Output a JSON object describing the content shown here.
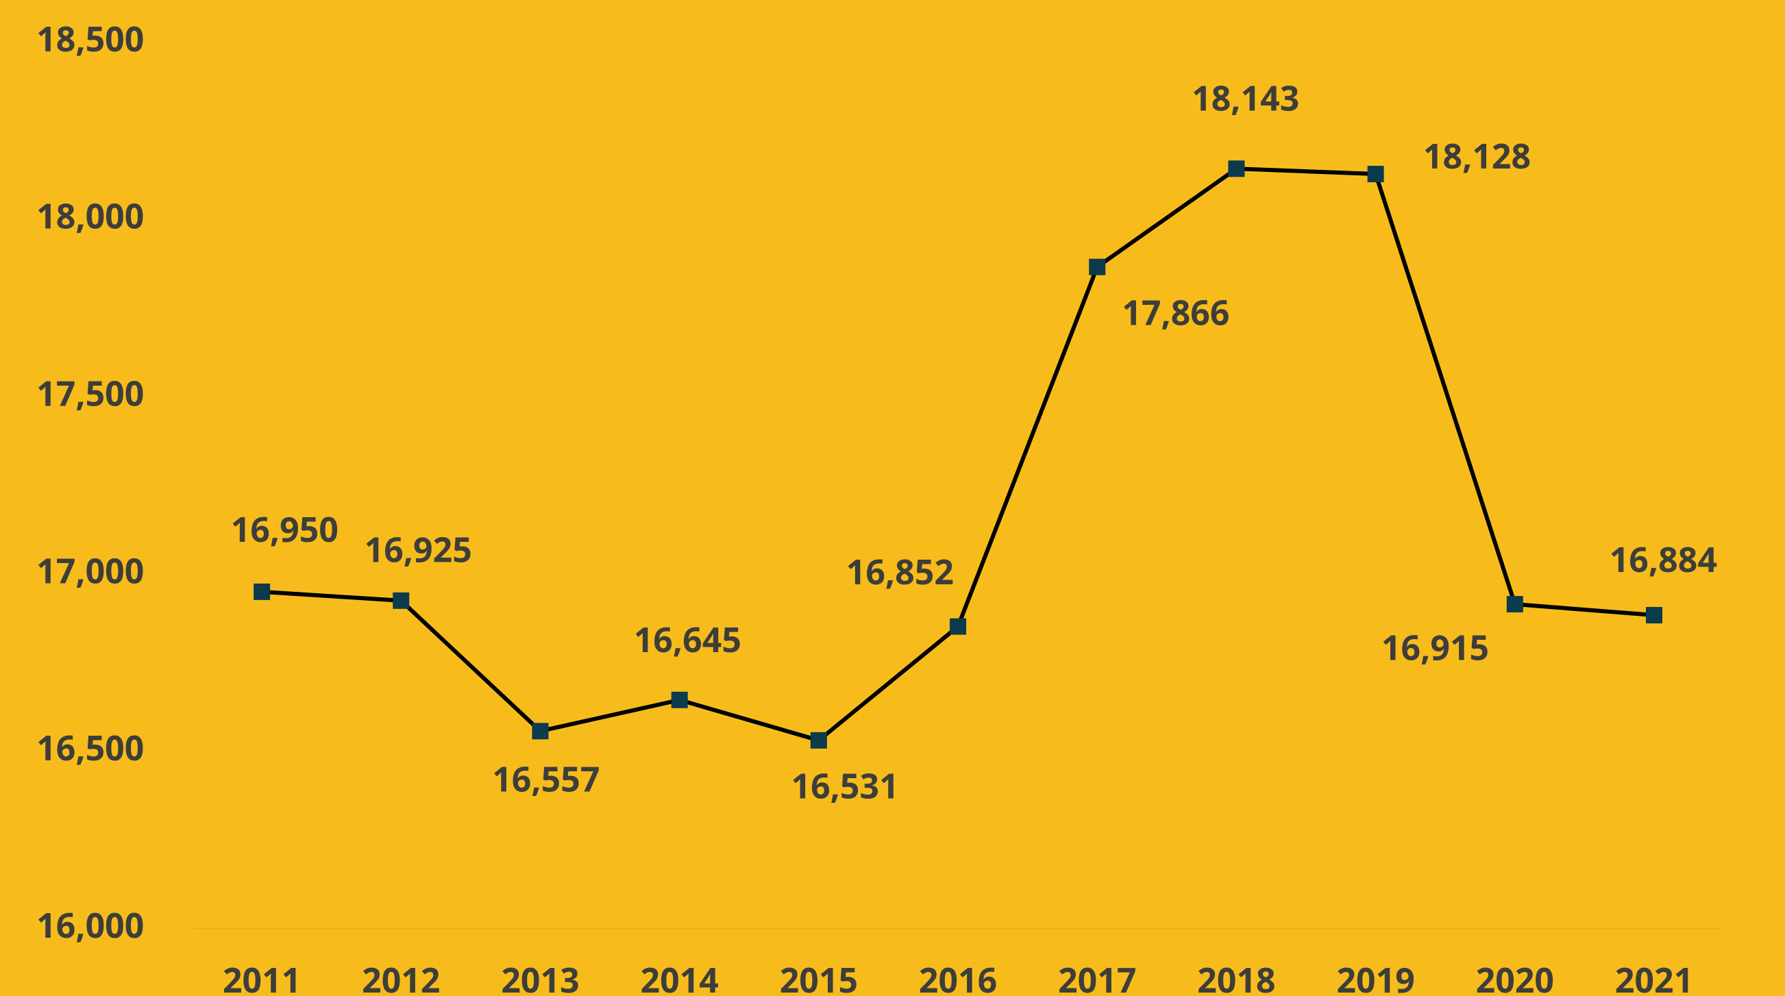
{
  "chart_data": {
    "type": "line",
    "categories": [
      "2011",
      "2012",
      "2013",
      "2014",
      "2015",
      "2016",
      "2017",
      "2018",
      "2019",
      "2020",
      "2021"
    ],
    "series": [
      {
        "color": "#000000",
        "marker_color": "#0b3b4c",
        "values": [
          16950,
          16925,
          16557,
          16645,
          16531,
          16852,
          17866,
          18143,
          18128,
          16915,
          16884
        ],
        "value_labels": [
          "16,950",
          "16,925",
          "16,557",
          "16,645",
          "16,531",
          "16,852",
          "17,866",
          "18,143",
          "18,128",
          "16,915",
          "16,884"
        ]
      }
    ],
    "ylim": [
      16000,
      18500
    ],
    "yticks": [
      {
        "value": 16000,
        "label": "16,000"
      },
      {
        "value": 16500,
        "label": "16,500"
      },
      {
        "value": 17000,
        "label": "17,000"
      },
      {
        "value": 17500,
        "label": "17,500"
      },
      {
        "value": 18000,
        "label": "18,000"
      },
      {
        "value": 18500,
        "label": "18,500"
      }
    ],
    "grid": false,
    "background": "#f7bc1c"
  }
}
